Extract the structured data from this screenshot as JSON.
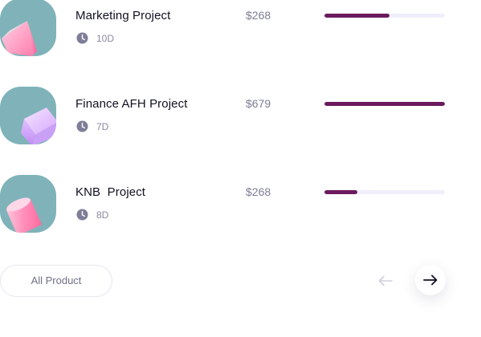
{
  "projects": [
    {
      "name": "Marketing Project",
      "duration": "10D",
      "price": "$268",
      "progress_percent": 54,
      "thumbnail_icon": "pink-cone-3d-icon"
    },
    {
      "name": "Finance AFH Project",
      "duration": "7D",
      "price": "$679",
      "progress_percent": 100,
      "thumbnail_icon": "purple-cube-3d-icon"
    },
    {
      "name": "KNB  Project",
      "duration": "8D",
      "price": "$268",
      "progress_percent": 27,
      "thumbnail_icon": "pink-cylinder-3d-icon"
    }
  ],
  "footer": {
    "all_product_label": "All Product",
    "prev_icon": "arrow-left-icon",
    "next_icon": "arrow-right-icon"
  },
  "colors": {
    "thumbnail_bg": "#7fb3b9",
    "progress_fill": "#6b1a5e",
    "progress_track": "#efeefb",
    "price_text": "#7d7d95",
    "meta_text": "#8a8aa0"
  }
}
